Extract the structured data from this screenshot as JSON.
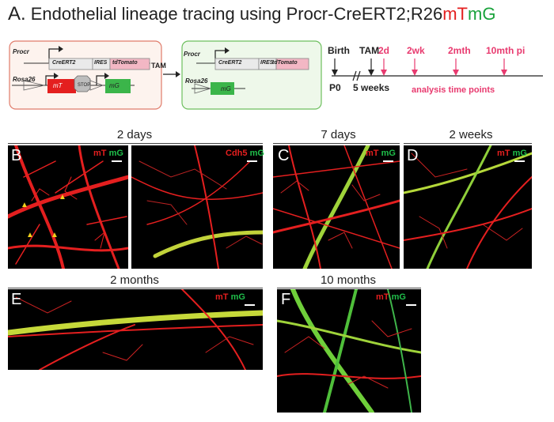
{
  "title": {
    "panel_letter": "A.",
    "text_prefix": "Endothelial lineage tracing using Procr-CreERT2;R26",
    "mT": "mT",
    "mG": "mG"
  },
  "construct": {
    "procr": "Procr",
    "creert2": "CreERT2",
    "ires": "IRES",
    "tdtomato": "tdTomato",
    "rosa26": "Rosa26",
    "mt": "mT",
    "stop": "STOP",
    "mg": "mG",
    "tam": "TAM"
  },
  "timeline": {
    "birth": "Birth",
    "tam": "TAM",
    "p0": "P0",
    "five_weeks": "5 weeks",
    "points": [
      "2d",
      "2wk",
      "2mth",
      "10mth pi"
    ],
    "analysis": "analysis time points"
  },
  "sections": {
    "two_days": "2 days",
    "seven_days": "7 days",
    "two_weeks": "2 weeks",
    "two_months": "2 months",
    "ten_months": "10 months"
  },
  "panels": {
    "B": "B",
    "C": "C",
    "D": "D",
    "E": "E",
    "F": "F"
  },
  "legends": {
    "mT": "mT",
    "mG": "mG",
    "cdh5": "Cdh5"
  },
  "colors": {
    "red": "#e41f1f",
    "green": "#1aa33c",
    "magenta": "#e83a6f"
  }
}
